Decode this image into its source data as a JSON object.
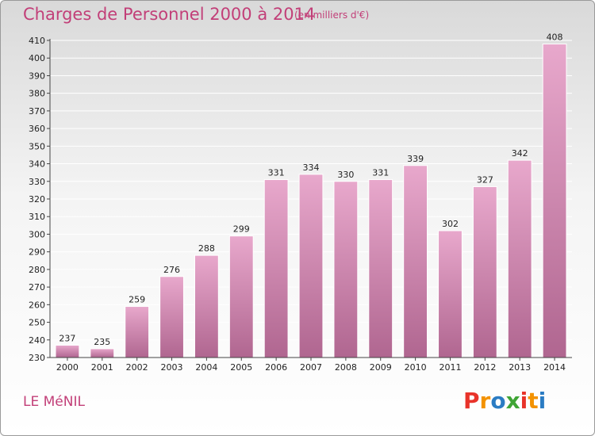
{
  "header": {
    "title": "Charges de Personnel 2000 à 2014",
    "subtitle": "(en milliers d'€)"
  },
  "footer": {
    "town": "LE MéNIL",
    "logo": "Proxiti"
  },
  "colors": {
    "title": "#c23f78",
    "bar_top": "#e8a8cc",
    "bar_bottom": "#b06690",
    "grid": "#ffffff",
    "logo_letters": [
      "#e8332a",
      "#f39200",
      "#2b7cc3",
      "#3fa535",
      "#e8332a",
      "#f39200",
      "#2b7cc3"
    ]
  },
  "chart_data": {
    "type": "bar",
    "title": "Charges de Personnel 2000 à 2014",
    "subtitle": "(en milliers d'€)",
    "categories": [
      "2000",
      "2001",
      "2002",
      "2003",
      "2004",
      "2005",
      "2006",
      "2007",
      "2008",
      "2009",
      "2010",
      "2011",
      "2012",
      "2013",
      "2014"
    ],
    "values": [
      237,
      235,
      259,
      276,
      288,
      299,
      331,
      334,
      330,
      331,
      339,
      302,
      327,
      342,
      408
    ],
    "ylim": [
      230,
      410
    ],
    "ytick_step": 10,
    "grid": true,
    "data_labels": true
  }
}
